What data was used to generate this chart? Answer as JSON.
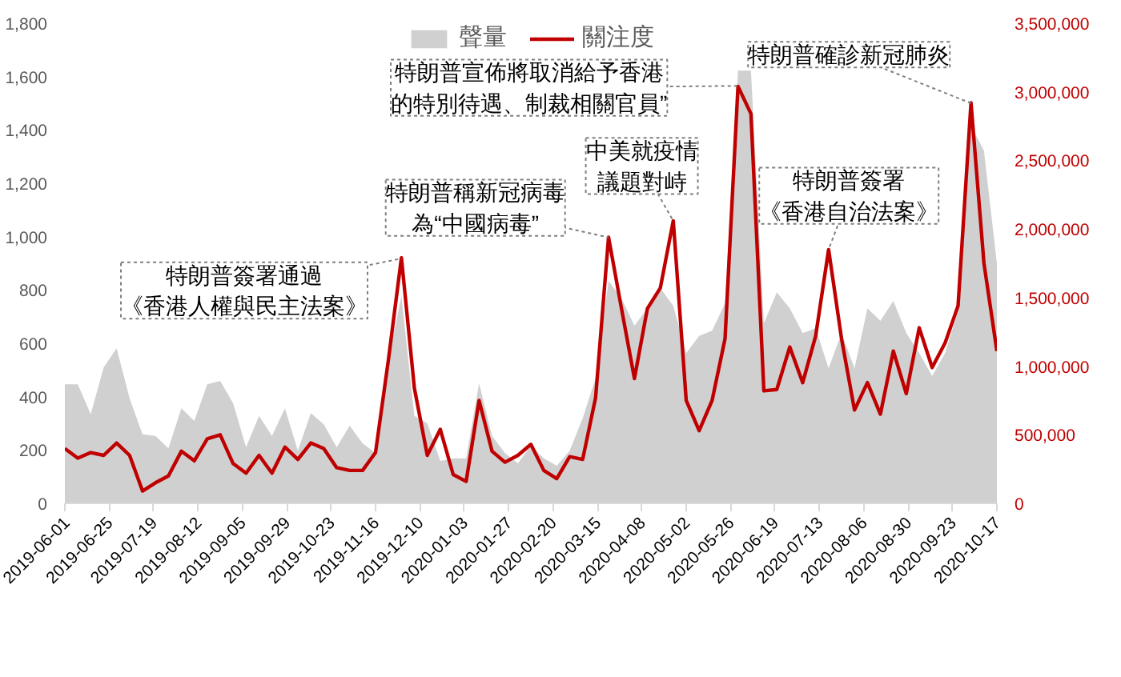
{
  "chart_data": {
    "type": "area",
    "legend": "top",
    "grid": false,
    "x": [
      "2019-06-01",
      "2019-06-08",
      "2019-06-15",
      "2019-06-22",
      "2019-06-29",
      "2019-07-06",
      "2019-07-13",
      "2019-07-20",
      "2019-07-27",
      "2019-08-03",
      "2019-08-10",
      "2019-08-17",
      "2019-08-24",
      "2019-08-31",
      "2019-09-07",
      "2019-09-14",
      "2019-09-21",
      "2019-09-28",
      "2019-10-05",
      "2019-10-12",
      "2019-10-19",
      "2019-10-26",
      "2019-11-02",
      "2019-11-09",
      "2019-11-16",
      "2019-11-23",
      "2019-11-30",
      "2019-12-07",
      "2019-12-14",
      "2019-12-21",
      "2019-12-28",
      "2020-01-04",
      "2020-01-11",
      "2020-01-18",
      "2020-01-25",
      "2020-02-01",
      "2020-02-08",
      "2020-02-15",
      "2020-02-22",
      "2020-02-29",
      "2020-03-07",
      "2020-03-14",
      "2020-03-21",
      "2020-03-28",
      "2020-04-04",
      "2020-04-11",
      "2020-04-18",
      "2020-04-25",
      "2020-05-02",
      "2020-05-09",
      "2020-05-16",
      "2020-05-23",
      "2020-05-30",
      "2020-06-06",
      "2020-06-13",
      "2020-06-20",
      "2020-06-27",
      "2020-07-04",
      "2020-07-11",
      "2020-07-18",
      "2020-07-25",
      "2020-08-01",
      "2020-08-08",
      "2020-08-15",
      "2020-08-22",
      "2020-08-29",
      "2020-09-05",
      "2020-09-12",
      "2020-09-19",
      "2020-09-26",
      "2020-10-03",
      "2020-10-10",
      "2020-10-17"
    ],
    "xlim": [
      "2019-06-01",
      "2020-10-17"
    ],
    "xticks": [
      "2019-06-01",
      "2019-06-25",
      "2019-07-19",
      "2019-08-12",
      "2019-09-05",
      "2019-09-29",
      "2019-10-23",
      "2019-11-16",
      "2019-12-10",
      "2020-01-03",
      "2020-01-27",
      "2020-02-20",
      "2020-03-15",
      "2020-04-08",
      "2020-05-02",
      "2020-05-26",
      "2020-06-19",
      "2020-07-13",
      "2020-08-06",
      "2020-08-30",
      "2020-09-23",
      "2020-10-17"
    ],
    "ylim": [
      0,
      1800
    ],
    "yticks": [
      0,
      200,
      400,
      600,
      800,
      {
        "value": 1000,
        "label": "1,000"
      },
      {
        "value": 1200,
        "label": "1,200"
      },
      {
        "value": 1400,
        "label": "1,400"
      },
      {
        "value": 1600,
        "label": "1,600"
      },
      {
        "value": 1800,
        "label": "1,800"
      }
    ],
    "y2lim": [
      0,
      3500000
    ],
    "y2ticks": [
      0,
      {
        "value": 500000,
        "label": "500,000"
      },
      {
        "value": 1000000,
        "label": "1,000,000"
      },
      {
        "value": 1500000,
        "label": "1,500,000"
      },
      {
        "value": 2000000,
        "label": "2,000,000"
      },
      {
        "value": 2500000,
        "label": "2,500,000"
      },
      {
        "value": 3000000,
        "label": "3,000,000"
      },
      {
        "value": 3500000,
        "label": "3,500,000"
      }
    ],
    "series": [
      {
        "name": "聲量",
        "color": "#d0d0d0",
        "values": [
          446,
          446,
          334,
          510,
          581,
          394,
          259,
          253,
          206,
          356,
          309,
          446,
          459,
          375,
          210,
          328,
          253,
          356,
          197,
          338,
          296,
          210,
          291,
          225,
          188,
          540,
          778,
          328,
          300,
          159,
          169,
          169,
          450,
          253,
          188,
          150,
          216,
          169,
          141,
          197,
          319,
          469,
          834,
          769,
          666,
          731,
          806,
          741,
          563,
          628,
          647,
          750,
          1622,
          1622,
          675,
          791,
          731,
          638,
          656,
          506,
          638,
          506,
          731,
          684,
          759,
          638,
          563,
          478,
          563,
          722,
          1416,
          1322,
          900
        ]
      },
      {
        "name": "關注度",
        "type": "line",
        "axis": "y2",
        "color": "#c00000",
        "values": [
          400000,
          330000,
          370000,
          350000,
          440000,
          350000,
          90000,
          150000,
          200000,
          380000,
          310000,
          470000,
          500000,
          290000,
          220000,
          350000,
          220000,
          410000,
          320000,
          440000,
          400000,
          260000,
          240000,
          240000,
          370000,
          1050000,
          1790000,
          840000,
          350000,
          540000,
          210000,
          160000,
          750000,
          380000,
          300000,
          350000,
          430000,
          240000,
          180000,
          340000,
          320000,
          770000,
          1940000,
          1420000,
          910000,
          1420000,
          1570000,
          2060000,
          750000,
          530000,
          750000,
          1200000,
          3040000,
          2840000,
          820000,
          830000,
          1140000,
          880000,
          1220000,
          1850000,
          1200000,
          680000,
          880000,
          650000,
          1110000,
          800000,
          1280000,
          990000,
          1170000,
          1440000,
          2920000,
          1750000,
          1110000
        ]
      }
    ],
    "annotations": [
      {
        "text": "特朗普簽署通過《香港人權與民主法案》",
        "x": "2019-11-30",
        "y": 918
      },
      {
        "text": "特朗普稱新冠病毒為“中國病毒”",
        "x": "2020-03-21",
        "y": 997
      },
      {
        "text": "中美就疫情議題對峙",
        "x": "2020-04-25",
        "y": 1059
      },
      {
        "text": "特朗普宣佈將取消給予香港的特別待遇、制裁相關官員”",
        "x": "2020-05-30",
        "y": 1565
      },
      {
        "text": "特朗普確診新冠肺炎",
        "x": "2020-10-03",
        "y": 1500
      },
      {
        "text": "特朗普簽署《香港自治法案》",
        "x": "2020-07-18",
        "y": 952
      }
    ]
  }
}
